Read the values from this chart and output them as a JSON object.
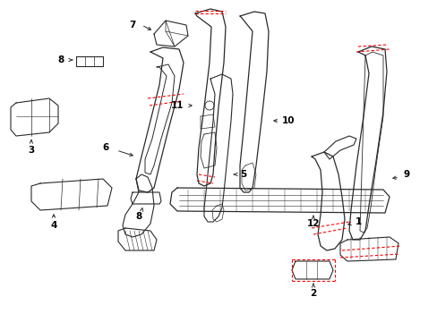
{
  "bg_color": "#ffffff",
  "line_color": "#2a2a2a",
  "red_color": "#ff0000",
  "fig_width": 4.89,
  "fig_height": 3.6,
  "dpi": 100
}
